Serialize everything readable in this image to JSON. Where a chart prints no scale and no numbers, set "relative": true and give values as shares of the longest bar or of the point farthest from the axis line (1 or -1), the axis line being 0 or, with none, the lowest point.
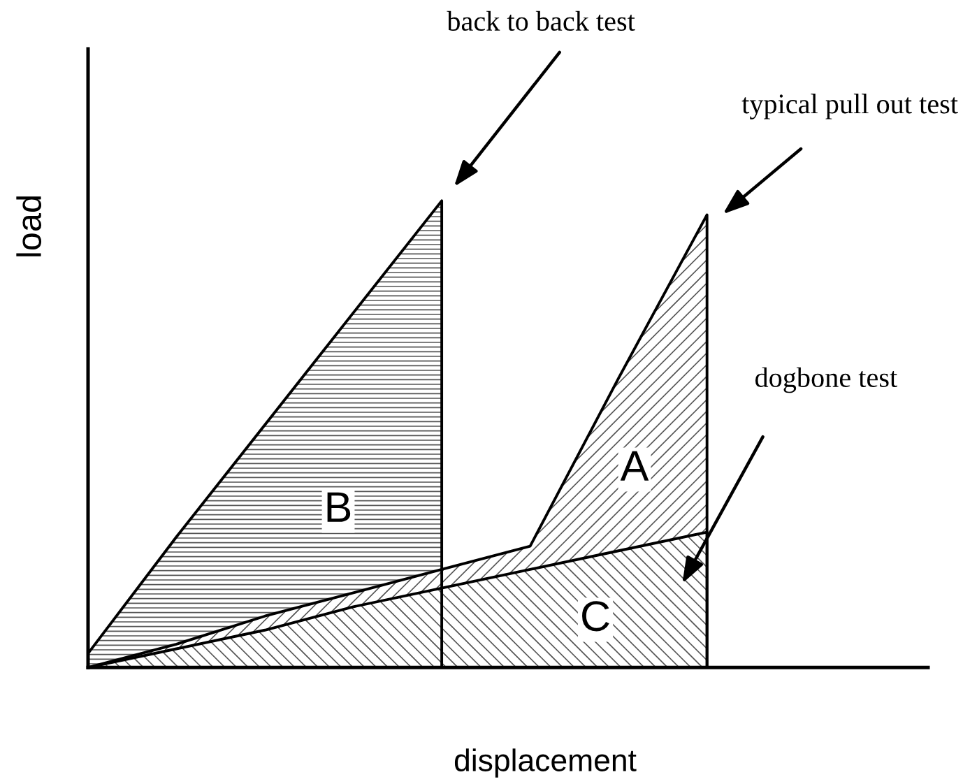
{
  "chart_data": {
    "type": "area",
    "relative": true,
    "xlabel": "displacement",
    "ylabel": "load",
    "categories": [
      null,
      null,
      null,
      null,
      null,
      null,
      null,
      null
    ],
    "series": [
      {
        "name": "back to back test",
        "color": "#000000",
        "values": [
          0.03,
          0.28,
          0.52,
          0.76,
          1,
          null,
          null,
          null
        ]
      },
      {
        "name": "typical pull out test",
        "color": "#000000",
        "values": [
          0,
          0.05,
          0.11,
          0.16,
          0.21,
          0.26,
          0.62,
          0.97
        ]
      },
      {
        "name": "dogbone test",
        "color": "#000000",
        "values": [
          0,
          0.04,
          0.08,
          0.13,
          0.17,
          0.21,
          0.25,
          0.29
        ]
      }
    ],
    "annotations": [
      "B",
      "A",
      "C"
    ]
  }
}
